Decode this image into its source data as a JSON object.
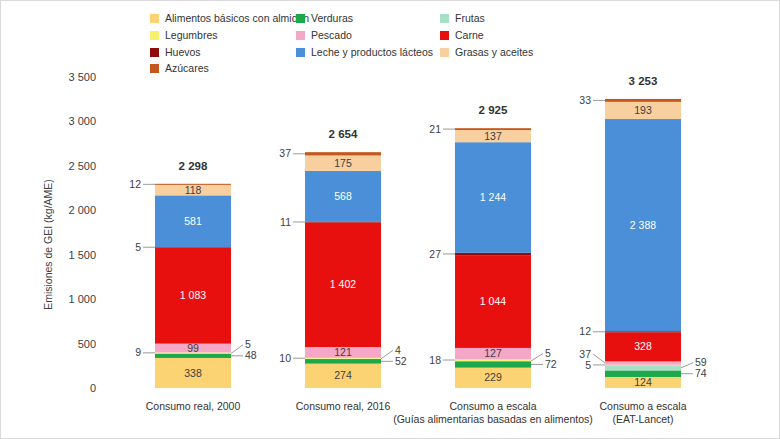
{
  "chart_data": {
    "type": "bar",
    "stacked": true,
    "data_labels": true,
    "grid": false,
    "legend": "top-left",
    "y_label": "Emisiones de GEI (kg/AME)",
    "categories": [
      "Consumo real, 2000",
      "Consumo real, 2016",
      "Consumo a escala\n(Guías alimentarias basadas en alimentos)",
      "Consumo a escala\n(EAT-Lancet)"
    ],
    "ylim": [
      0,
      3500
    ],
    "yticks": [
      0,
      500,
      {
        "value": 1000,
        "label": "1 000"
      },
      {
        "value": 1500,
        "label": "1 500"
      },
      {
        "value": 2000,
        "label": "2 000"
      },
      {
        "value": 2500,
        "label": "2 500"
      },
      {
        "value": 3000,
        "label": "3 000"
      },
      {
        "value": 3500,
        "label": "3 500"
      }
    ],
    "series": [
      {
        "name": "Alimentos básicos con almidón",
        "color": "#fbd372",
        "values": [
          338,
          274,
          229,
          124
        ]
      },
      {
        "name": "Verduras",
        "color": "#1ea84c",
        "values": [
          48,
          52,
          72,
          74
        ]
      },
      {
        "name": "Frutas",
        "color": "#a8e0c6",
        "values": [
          5,
          4,
          5,
          59
        ]
      },
      {
        "name": "Legumbres",
        "color": "#f7f06a",
        "values": [
          9,
          10,
          18,
          5
        ]
      },
      {
        "name": "Pescado",
        "color": "#f4a7c6",
        "values": [
          99,
          121,
          127,
          37
        ]
      },
      {
        "name": "Carne",
        "color": "#e8100f",
        "values": [
          1083,
          1402,
          1044,
          328
        ],
        "value_labels": [
          "1 083",
          "1 402",
          "1 044",
          "328"
        ]
      },
      {
        "name": "Huevos",
        "color": "#8e0c0c",
        "values": [
          5,
          11,
          27,
          12
        ]
      },
      {
        "name": "Leche y productos lácteos",
        "color": "#4a8fd8",
        "values": [
          581,
          568,
          1244,
          2388
        ],
        "value_labels": [
          "581",
          "568",
          "1 244",
          "2 388"
        ]
      },
      {
        "name": "Grasas y aceites",
        "color": "#f8cf9e",
        "values": [
          118,
          175,
          137,
          193
        ]
      },
      {
        "name": "Azúcares",
        "color": "#c4581c",
        "values": [
          12,
          37,
          21,
          33
        ]
      }
    ],
    "totals": [
      2298,
      2654,
      2925,
      3253
    ],
    "total_labels": [
      "2 298",
      "2 654",
      "2 925",
      "3 253"
    ]
  }
}
